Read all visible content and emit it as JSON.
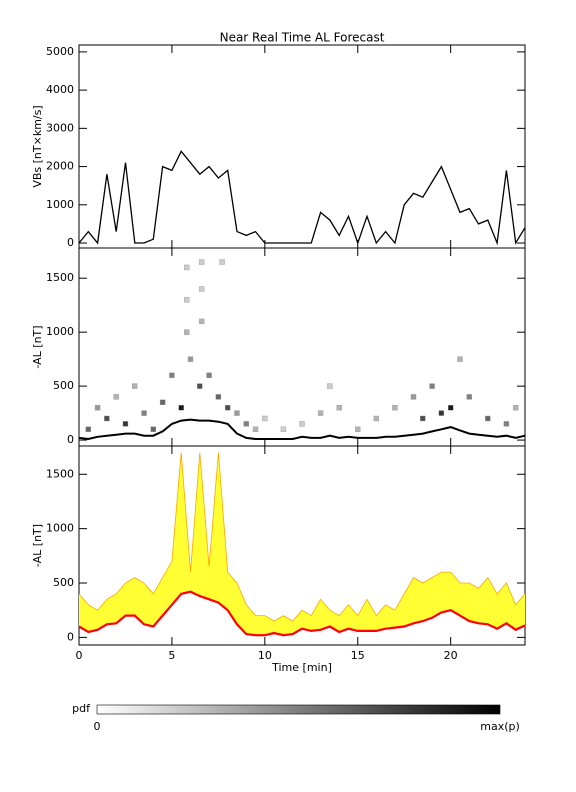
{
  "chart_data": [
    {
      "type": "line",
      "title": "Near Real Time AL Forecast",
      "ylabel": "VBs [nT×km/s]",
      "x": [
        0,
        0.5,
        1,
        1.5,
        2,
        2.5,
        3,
        3.5,
        4,
        4.5,
        5,
        5.5,
        6,
        6.5,
        7,
        7.5,
        8,
        8.5,
        9,
        9.5,
        10,
        10.5,
        11,
        11.5,
        12,
        12.5,
        13,
        13.5,
        14,
        14.5,
        15,
        15.5,
        16,
        16.5,
        17,
        17.5,
        18,
        18.5,
        19,
        19.5,
        20,
        20.5,
        21,
        21.5,
        22,
        22.5,
        23,
        23.5,
        24
      ],
      "series": [
        {
          "name": "VBs",
          "color": "#000000",
          "values": [
            0,
            300,
            0,
            1800,
            300,
            2100,
            0,
            0,
            100,
            2000,
            1900,
            2400,
            2100,
            1800,
            2000,
            1700,
            1900,
            300,
            200,
            300,
            0,
            0,
            0,
            0,
            0,
            0,
            800,
            600,
            200,
            700,
            0,
            700,
            0,
            300,
            0,
            1000,
            1300,
            1200,
            1600,
            2000,
            1400,
            800,
            900,
            500,
            600,
            0,
            1900,
            0,
            400
          ]
        }
      ],
      "xlim": [
        0,
        24
      ],
      "xticks": [
        0,
        5,
        10,
        15,
        20
      ],
      "ylim": [
        -130,
        5180
      ],
      "yticks": [
        0,
        1000,
        2000,
        3000,
        4000,
        5000
      ]
    },
    {
      "type": "heatmap",
      "ylabel": "-AL [nT]",
      "x": [
        0,
        0.5,
        1,
        1.5,
        2,
        2.5,
        3,
        3.5,
        4,
        4.5,
        5,
        5.5,
        6,
        6.5,
        7,
        7.5,
        8,
        8.5,
        9,
        9.5,
        10,
        10.5,
        11,
        11.5,
        12,
        12.5,
        13,
        13.5,
        14,
        14.5,
        15,
        15.5,
        16,
        16.5,
        17,
        17.5,
        18,
        18.5,
        19,
        19.5,
        20,
        20.5,
        21,
        21.5,
        22,
        22.5,
        23,
        23.5,
        24
      ],
      "series": [
        {
          "name": "median",
          "color": "#000000",
          "values": [
            20,
            10,
            30,
            40,
            50,
            60,
            60,
            40,
            40,
            80,
            150,
            180,
            190,
            180,
            180,
            170,
            150,
            60,
            20,
            10,
            10,
            10,
            10,
            10,
            30,
            20,
            20,
            40,
            20,
            30,
            20,
            20,
            20,
            30,
            30,
            40,
            50,
            60,
            80,
            100,
            120,
            90,
            60,
            50,
            40,
            30,
            40,
            20,
            40
          ]
        }
      ],
      "cells": {
        "x": [
          0.5,
          1,
          1.5,
          2,
          2.5,
          3,
          3.5,
          4,
          4.5,
          5,
          5.5,
          5.8,
          5.8,
          5.8,
          6,
          6.5,
          6.6,
          6.6,
          6.6,
          7,
          7.5,
          7.7,
          8,
          8.5,
          9,
          9.5,
          10,
          11,
          12,
          13,
          13.5,
          14,
          15,
          16,
          17,
          18,
          18.5,
          19,
          19.5,
          20,
          20.5,
          21,
          22,
          23,
          23.5
        ],
        "y": [
          100,
          300,
          200,
          400,
          150,
          500,
          250,
          100,
          350,
          600,
          300,
          1600,
          1300,
          1000,
          750,
          500,
          1650,
          1400,
          1100,
          600,
          400,
          1650,
          300,
          250,
          150,
          100,
          200,
          100,
          150,
          250,
          500,
          300,
          100,
          200,
          300,
          400,
          200,
          500,
          250,
          300,
          750,
          400,
          200,
          150,
          300
        ],
        "p": [
          0.6,
          0.4,
          0.7,
          0.3,
          0.8,
          0.3,
          0.5,
          0.6,
          0.6,
          0.5,
          0.9,
          0.2,
          0.2,
          0.3,
          0.4,
          0.7,
          0.2,
          0.2,
          0.3,
          0.5,
          0.6,
          0.2,
          0.7,
          0.4,
          0.5,
          0.3,
          0.2,
          0.2,
          0.2,
          0.3,
          0.2,
          0.3,
          0.3,
          0.3,
          0.3,
          0.4,
          0.7,
          0.5,
          0.8,
          0.9,
          0.3,
          0.5,
          0.6,
          0.5,
          0.3
        ]
      },
      "colorbar": {
        "label": "pdf",
        "min_label": "0",
        "max_label": "max(p)"
      },
      "xlim": [
        0,
        24
      ],
      "xticks": [
        0,
        5,
        10,
        15,
        20
      ],
      "ylim": [
        -55,
        1780
      ],
      "yticks": [
        0,
        500,
        1000,
        1500
      ]
    },
    {
      "type": "band",
      "ylabel": "-AL [nT]",
      "xlabel": "Time [min]",
      "fill": "#ffff33",
      "x": [
        0,
        0.5,
        1,
        1.5,
        2,
        2.5,
        3,
        3.5,
        4,
        4.5,
        5,
        5.5,
        6,
        6.5,
        7,
        7.5,
        8,
        8.5,
        9,
        9.5,
        10,
        10.5,
        11,
        11.5,
        12,
        12.5,
        13,
        13.5,
        14,
        14.5,
        15,
        15.5,
        16,
        16.5,
        17,
        17.5,
        18,
        18.5,
        19,
        19.5,
        20,
        20.5,
        21,
        21.5,
        22,
        22.5,
        23,
        23.5,
        24
      ],
      "series": [
        {
          "name": "median",
          "color": "#ff0000",
          "values": [
            100,
            50,
            70,
            120,
            130,
            200,
            200,
            120,
            100,
            200,
            300,
            400,
            420,
            380,
            350,
            320,
            250,
            120,
            30,
            20,
            20,
            40,
            20,
            30,
            80,
            60,
            70,
            100,
            50,
            80,
            60,
            60,
            60,
            80,
            90,
            100,
            130,
            150,
            180,
            230,
            250,
            200,
            150,
            130,
            120,
            80,
            130,
            70,
            110
          ]
        },
        {
          "name": "upper",
          "color": "#ffa500",
          "values": [
            400,
            300,
            250,
            350,
            400,
            500,
            550,
            500,
            400,
            550,
            700,
            1700,
            600,
            1700,
            650,
            1700,
            600,
            500,
            300,
            200,
            200,
            150,
            200,
            150,
            250,
            200,
            350,
            250,
            200,
            300,
            200,
            350,
            200,
            300,
            250,
            400,
            550,
            500,
            550,
            600,
            600,
            500,
            500,
            450,
            550,
            400,
            500,
            300,
            400
          ]
        }
      ],
      "xlim": [
        0,
        24
      ],
      "xticks": [
        0,
        5,
        10,
        15,
        20
      ],
      "ylim": [
        -70,
        1760
      ],
      "yticks": [
        0,
        500,
        1000,
        1500
      ]
    }
  ]
}
